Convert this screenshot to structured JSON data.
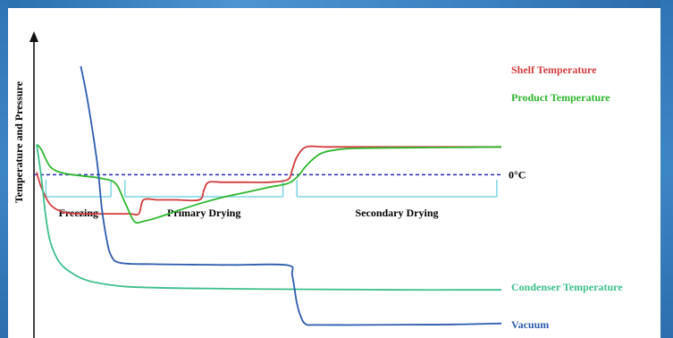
{
  "chart_data": {
    "type": "line",
    "xlabel": "",
    "ylabel": "Temperature and Pressure",
    "xlim": [
      0,
      100
    ],
    "ylim": [
      0,
      100
    ],
    "grid": false,
    "reference_lines": [
      {
        "label": "0°C",
        "y": 63,
        "style": "dashed",
        "color": "#2a2ab8"
      }
    ],
    "phases": [
      {
        "label": "Freezing",
        "x_start": 2,
        "x_end": 16
      },
      {
        "label": "Primary Drying",
        "x_start": 19,
        "x_end": 53
      },
      {
        "label": "Secondary Drying",
        "x_start": 56,
        "x_end": 99
      }
    ],
    "series": [
      {
        "name": "Shelf Temperature",
        "color": "#d23c3c",
        "x": [
          0,
          1,
          3,
          6,
          10,
          16,
          20,
          22,
          23,
          26,
          30,
          35,
          36,
          37,
          40,
          45,
          50,
          54,
          55,
          56,
          58,
          62,
          70,
          80,
          90,
          100
        ],
        "y": [
          64,
          58,
          51,
          48,
          47.5,
          47.5,
          47.5,
          47.5,
          53,
          53,
          53,
          53,
          57,
          60,
          60,
          60,
          60,
          61,
          65,
          70,
          74,
          74,
          74,
          74,
          74,
          74
        ]
      },
      {
        "name": "Product Temperature",
        "color": "#2eb82e",
        "x": [
          0,
          1,
          3,
          6,
          10,
          14,
          17,
          19,
          21,
          23,
          26,
          30,
          35,
          40,
          45,
          50,
          54,
          56,
          58,
          60,
          62,
          66,
          70,
          80,
          90,
          100
        ],
        "y": [
          75,
          73,
          66,
          63.5,
          62.5,
          61.5,
          59.5,
          52,
          44.5,
          44.5,
          46,
          48.5,
          51.5,
          54,
          56,
          58,
          59.5,
          62,
          66.5,
          70,
          72,
          73.2,
          73.5,
          73.7,
          73.8,
          74
        ]
      },
      {
        "name": "Condenser Temperature",
        "color": "#3dbf8c",
        "x": [
          0,
          1,
          2,
          3,
          5,
          8,
          11,
          15,
          20,
          30,
          40,
          50,
          60,
          70,
          80,
          90,
          100
        ],
        "y": [
          75,
          62,
          46,
          36,
          28,
          23.5,
          21,
          19.5,
          18.5,
          18,
          17.8,
          17.6,
          17.5,
          17.4,
          17.3,
          17.3,
          17.3
        ]
      },
      {
        "name": "Vacuum",
        "color": "#2c5cae",
        "x": [
          9.5,
          11,
          13,
          14,
          15,
          16,
          18,
          25,
          35,
          40,
          43,
          54,
          55,
          56,
          57,
          58,
          60,
          70,
          80,
          90,
          100
        ],
        "y": [
          106,
          92,
          68,
          50,
          38,
          31,
          28,
          27.5,
          27.3,
          27.2,
          27.2,
          27.1,
          23,
          12,
          6,
          3.6,
          3.4,
          3.4,
          3.5,
          3.6,
          4
        ]
      }
    ]
  }
}
